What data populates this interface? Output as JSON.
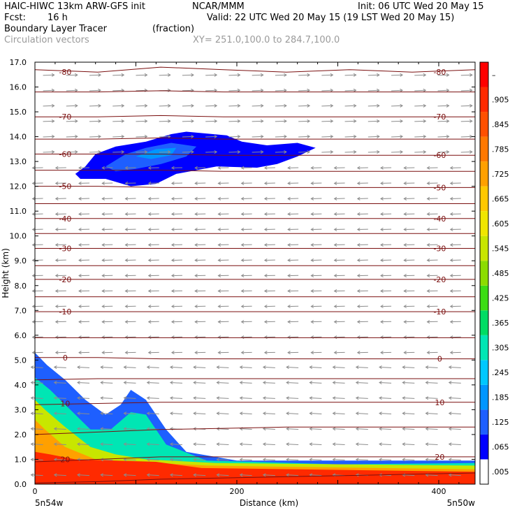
{
  "header": {
    "model": "HAIC-HIWC 13km ARW-GFS init",
    "org": "NCAR/MMM",
    "init": "Init: 06 UTC Wed 20 May 15",
    "fcst_label": "Fcst:",
    "fcst_value": "16 h",
    "valid": "Valid: 22 UTC Wed 20 May 15 (19 LST Wed 20 May 15)",
    "field": "Boundary Layer Tracer",
    "units": "(fraction)",
    "vectors": "Circulation vectors",
    "xy": "XY= 251.0,100.0 to 284.7,100.0"
  },
  "colors": {
    "isotherm": "#7a0f0f",
    "vector": "#8c8c8c",
    "frame": "#000000"
  },
  "chart_data": {
    "type": "heatmap",
    "title": "Boundary Layer Tracer",
    "xlabel": "Distance (km)",
    "ylabel": "Height (km)",
    "xlim": [
      0,
      436
    ],
    "ylim": [
      0,
      17
    ],
    "xticks": [
      {
        "value": 0,
        "label": "0"
      },
      {
        "value": 200,
        "label": "200"
      },
      {
        "value": 400,
        "label": "400"
      }
    ],
    "yticks": [
      0.0,
      1.0,
      2.0,
      3.0,
      4.0,
      5.0,
      6.0,
      7.0,
      8.0,
      9.0,
      10.0,
      11.0,
      12.0,
      13.0,
      14.0,
      15.0,
      16.0,
      17.0
    ],
    "ytick_labels": [
      "0.0",
      "1.0",
      "2.0",
      "3.0",
      "4.0",
      "5.0",
      "6.0",
      "7.0",
      "8.0",
      "9.0",
      "10.0",
      "11.0",
      "12.0",
      "13.0",
      "14.0",
      "15.0",
      "16.0",
      "17.0"
    ],
    "corner_labels": {
      "left": "5n54w",
      "right": "5n50w"
    },
    "colorbar": {
      "levels": [
        ".005",
        ".065",
        ".125",
        ".185",
        ".245",
        ".305",
        ".365",
        ".425",
        ".485",
        ".545",
        ".605",
        ".665",
        ".725",
        ".785",
        ".845",
        ".905",
        "–"
      ],
      "colors": [
        "#ffffff",
        "#0000ff",
        "#1e5fff",
        "#0096ff",
        "#00c8ff",
        "#00e6b4",
        "#00dc64",
        "#3cdc14",
        "#8cdc00",
        "#c8e600",
        "#f0e600",
        "#ffc800",
        "#ffa000",
        "#ff7800",
        "#ff5000",
        "#ff2a00",
        "#ff0000"
      ]
    },
    "isotherms": [
      {
        "value": -80,
        "label": "-80",
        "heights": [
          16.7,
          16.6,
          16.8,
          16.7,
          16.6,
          16.7,
          16.6,
          16.7
        ]
      },
      {
        "value": -75,
        "label": "",
        "heights": [
          15.8,
          15.8,
          15.85,
          15.8,
          15.8,
          15.8,
          15.8,
          15.8
        ]
      },
      {
        "value": -70,
        "label": "-70",
        "heights": [
          14.8,
          14.8,
          14.85,
          14.8,
          14.8,
          14.8,
          14.8,
          14.8
        ]
      },
      {
        "value": -65,
        "label": "",
        "heights": [
          13.9,
          13.9,
          13.95,
          13.9,
          13.9,
          13.9,
          13.9,
          13.9
        ]
      },
      {
        "value": -60,
        "label": "-60",
        "heights": [
          13.3,
          13.3,
          13.3,
          13.25,
          13.25,
          13.25,
          13.25,
          13.25
        ]
      },
      {
        "value": -55,
        "label": "",
        "heights": [
          12.65,
          12.65,
          12.65,
          12.6,
          12.6,
          12.6,
          12.6,
          12.6
        ]
      },
      {
        "value": -50,
        "label": "-50",
        "heights": [
          12.0,
          12.0,
          11.95,
          11.95,
          11.95,
          11.95,
          11.95,
          11.95
        ]
      },
      {
        "value": -45,
        "label": "",
        "heights": [
          11.3,
          11.3,
          11.3,
          11.3,
          11.3,
          11.3,
          11.3,
          11.3
        ]
      },
      {
        "value": -40,
        "label": "-40",
        "heights": [
          10.7,
          10.7,
          10.7,
          10.7,
          10.7,
          10.7,
          10.7,
          10.7
        ]
      },
      {
        "value": -35,
        "label": "",
        "heights": [
          10.1,
          10.1,
          10.1,
          10.1,
          10.1,
          10.1,
          10.1,
          10.1
        ]
      },
      {
        "value": -30,
        "label": "-30",
        "heights": [
          9.5,
          9.5,
          9.5,
          9.5,
          9.5,
          9.5,
          9.5,
          9.5
        ]
      },
      {
        "value": -25,
        "label": "",
        "heights": [
          8.8,
          8.8,
          8.8,
          8.8,
          8.8,
          8.8,
          8.8,
          8.8
        ]
      },
      {
        "value": -20,
        "label": "-20",
        "heights": [
          8.25,
          8.25,
          8.25,
          8.25,
          8.25,
          8.25,
          8.25,
          8.25
        ]
      },
      {
        "value": -15,
        "label": "",
        "heights": [
          7.55,
          7.55,
          7.55,
          7.55,
          7.55,
          7.55,
          7.55,
          7.55
        ]
      },
      {
        "value": -10,
        "label": "-10",
        "heights": [
          6.95,
          6.95,
          6.95,
          6.95,
          6.95,
          6.95,
          6.95,
          6.95
        ]
      },
      {
        "value": -5,
        "label": "",
        "heights": [
          5.9,
          5.9,
          5.9,
          5.9,
          5.9,
          5.9,
          5.9,
          5.9
        ]
      },
      {
        "value": 0,
        "label": "0",
        "heights": [
          5.1,
          5.1,
          5.05,
          5.05,
          5.05,
          5.05,
          5.05,
          5.05
        ]
      },
      {
        "value": 5,
        "label": "",
        "heights": [
          4.2,
          4.25,
          4.25,
          4.25,
          4.25,
          4.25,
          4.25,
          4.25
        ]
      },
      {
        "value": 10,
        "label": "10",
        "heights": [
          3.2,
          3.25,
          3.3,
          3.3,
          3.3,
          3.3,
          3.3,
          3.3
        ]
      },
      {
        "value": 15,
        "label": "",
        "heights": [
          2.0,
          2.1,
          2.2,
          2.25,
          2.3,
          2.3,
          2.3,
          2.3
        ]
      },
      {
        "value": 20,
        "label": "20",
        "heights": [
          0.9,
          1.0,
          1.1,
          1.1,
          1.1,
          1.1,
          1.1,
          1.1
        ]
      },
      {
        "value": 25,
        "label": "",
        "heights": [
          0.05,
          0.1,
          0.2,
          0.25,
          0.3,
          0.35,
          0.4,
          0.45
        ]
      }
    ],
    "tracer_regions": [
      {
        "level": ".005",
        "points": [
          [
            0,
            0
          ],
          [
            436,
            0
          ],
          [
            436,
            1.05
          ],
          [
            330,
            1.1
          ],
          [
            230,
            1.1
          ],
          [
            170,
            1.1
          ],
          [
            150,
            1.5
          ],
          [
            154,
            2.4
          ],
          [
            150,
            3.3
          ],
          [
            140,
            3.8
          ],
          [
            120,
            4.2
          ],
          [
            100,
            4.3
          ],
          [
            85,
            3.7
          ],
          [
            75,
            3.15
          ],
          [
            60,
            3.3
          ],
          [
            48,
            4.5
          ],
          [
            42,
            4.2
          ],
          [
            35,
            4.8
          ],
          [
            20,
            4.9
          ],
          [
            14,
            5.6
          ],
          [
            5,
            5.95
          ],
          [
            0,
            5.95
          ]
        ]
      },
      {
        "level": ".125",
        "points": [
          [
            0,
            0
          ],
          [
            436,
            0
          ],
          [
            436,
            0.95
          ],
          [
            300,
            0.95
          ],
          [
            200,
            0.95
          ],
          [
            150,
            1.3
          ],
          [
            130,
            2.2
          ],
          [
            110,
            3.4
          ],
          [
            95,
            3.8
          ],
          [
            85,
            3.2
          ],
          [
            70,
            2.8
          ],
          [
            50,
            3.4
          ],
          [
            30,
            4.2
          ],
          [
            12,
            4.8
          ],
          [
            0,
            5.3
          ]
        ]
      },
      {
        "level": ".305",
        "points": [
          [
            0,
            0
          ],
          [
            436,
            0
          ],
          [
            436,
            0.85
          ],
          [
            300,
            0.8
          ],
          [
            170,
            0.95
          ],
          [
            130,
            1.6
          ],
          [
            110,
            2.8
          ],
          [
            95,
            2.9
          ],
          [
            75,
            2.2
          ],
          [
            55,
            2.2
          ],
          [
            35,
            3.0
          ],
          [
            15,
            3.8
          ],
          [
            0,
            4.3
          ]
        ]
      },
      {
        "level": ".545",
        "points": [
          [
            0,
            0
          ],
          [
            436,
            0
          ],
          [
            436,
            0.75
          ],
          [
            180,
            0.85
          ],
          [
            110,
            1.0
          ],
          [
            80,
            1.2
          ],
          [
            55,
            1.5
          ],
          [
            30,
            2.3
          ],
          [
            10,
            3.0
          ],
          [
            0,
            3.4
          ]
        ]
      },
      {
        "level": ".725",
        "points": [
          [
            0,
            0
          ],
          [
            436,
            0
          ],
          [
            436,
            0.6
          ],
          [
            170,
            0.75
          ],
          [
            100,
            0.9
          ],
          [
            60,
            1.0
          ],
          [
            30,
            1.5
          ],
          [
            10,
            2.2
          ],
          [
            0,
            2.6
          ]
        ]
      },
      {
        "level": ".905",
        "points": [
          [
            0,
            0
          ],
          [
            436,
            0
          ],
          [
            436,
            0.5
          ],
          [
            165,
            0.65
          ],
          [
            120,
            0.9
          ],
          [
            40,
            1.0
          ],
          [
            15,
            1.2
          ],
          [
            0,
            1.3
          ]
        ]
      },
      {
        "level": ".065",
        "points": [
          [
            40,
            12.5
          ],
          [
            50,
            12.8
          ],
          [
            60,
            13.3
          ],
          [
            80,
            13.6
          ],
          [
            110,
            13.8
          ],
          [
            135,
            14.1
          ],
          [
            150,
            14.2
          ],
          [
            190,
            14.05
          ],
          [
            205,
            13.8
          ],
          [
            230,
            13.65
          ],
          [
            260,
            13.75
          ],
          [
            278,
            13.55
          ],
          [
            260,
            13.2
          ],
          [
            240,
            12.9
          ],
          [
            220,
            12.75
          ],
          [
            180,
            12.8
          ],
          [
            140,
            12.5
          ],
          [
            120,
            12.1
          ],
          [
            95,
            12.0
          ],
          [
            70,
            12.3
          ],
          [
            45,
            12.3
          ]
        ]
      },
      {
        "level": ".125",
        "points": [
          [
            70,
            12.8
          ],
          [
            90,
            13.3
          ],
          [
            110,
            13.55
          ],
          [
            135,
            13.75
          ],
          [
            160,
            13.6
          ],
          [
            150,
            13.2
          ],
          [
            125,
            12.9
          ],
          [
            100,
            12.7
          ],
          [
            80,
            12.6
          ]
        ]
      },
      {
        "level": ".185",
        "points": [
          [
            100,
            13.2
          ],
          [
            120,
            13.5
          ],
          [
            140,
            13.55
          ],
          [
            135,
            13.25
          ],
          [
            115,
            13.1
          ]
        ]
      }
    ],
    "wind_vectors": {
      "x_spacing_km": 23,
      "z_spacing_km": 0.62,
      "upper_layer": {
        "min_height_km": 12.8,
        "direction": "east"
      },
      "mid_layer": {
        "min_height_km": 5.0,
        "max_height_km": 12.8,
        "direction": "west"
      },
      "low_layer": {
        "max_height_km": 5.0,
        "direction": "west-southwest"
      }
    },
    "grid": false,
    "legend": "right"
  }
}
